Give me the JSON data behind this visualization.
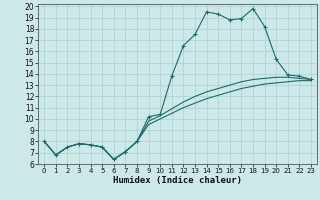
{
  "xlabel": "Humidex (Indice chaleur)",
  "bg_color": "#cde8e8",
  "grid_color": "#aed4d4",
  "line_color": "#1a6b6b",
  "xlim": [
    -0.5,
    23.5
  ],
  "ylim": [
    6,
    20.2
  ],
  "xticks": [
    0,
    1,
    2,
    3,
    4,
    5,
    6,
    7,
    8,
    9,
    10,
    11,
    12,
    13,
    14,
    15,
    16,
    17,
    18,
    19,
    20,
    21,
    22,
    23
  ],
  "yticks": [
    6,
    7,
    8,
    9,
    10,
    11,
    12,
    13,
    14,
    15,
    16,
    17,
    18,
    19,
    20
  ],
  "series1_x": [
    0,
    1,
    2,
    3,
    4,
    5,
    6,
    7,
    8,
    9,
    10,
    11,
    12,
    13,
    14,
    15,
    16,
    17,
    18,
    19,
    20,
    21,
    22,
    23
  ],
  "series1_y": [
    8.0,
    6.8,
    7.5,
    7.8,
    7.7,
    7.5,
    6.4,
    7.1,
    8.0,
    10.2,
    10.4,
    13.8,
    16.5,
    17.5,
    19.5,
    19.3,
    18.8,
    18.9,
    19.8,
    18.2,
    15.3,
    13.9,
    13.8,
    13.5
  ],
  "series2_x": [
    0,
    1,
    2,
    3,
    4,
    5,
    6,
    7,
    8,
    9,
    10,
    11,
    12,
    13,
    14,
    15,
    16,
    17,
    18,
    19,
    20,
    21,
    22,
    23
  ],
  "series2_y": [
    8.0,
    6.8,
    7.5,
    7.8,
    7.7,
    7.5,
    6.4,
    7.1,
    8.0,
    9.5,
    10.0,
    10.5,
    11.0,
    11.4,
    11.8,
    12.1,
    12.4,
    12.7,
    12.9,
    13.1,
    13.2,
    13.3,
    13.4,
    13.4
  ],
  "series3_x": [
    0,
    1,
    2,
    3,
    4,
    5,
    6,
    7,
    8,
    9,
    10,
    11,
    12,
    13,
    14,
    15,
    16,
    17,
    18,
    19,
    20,
    21,
    22,
    23
  ],
  "series3_y": [
    8.0,
    6.8,
    7.5,
    7.8,
    7.7,
    7.5,
    6.4,
    7.1,
    8.0,
    9.8,
    10.3,
    10.9,
    11.5,
    12.0,
    12.4,
    12.7,
    13.0,
    13.3,
    13.5,
    13.6,
    13.7,
    13.7,
    13.6,
    13.5
  ]
}
